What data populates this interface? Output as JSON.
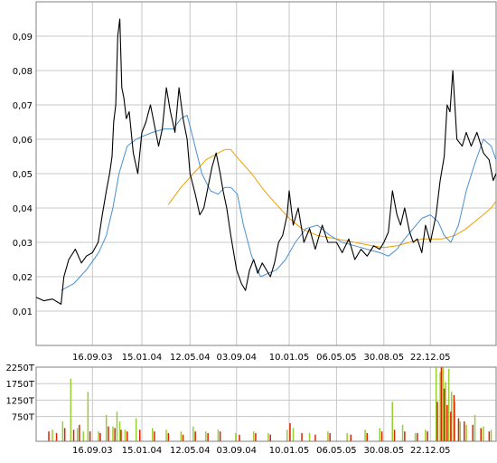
{
  "colors": {
    "price": "#000000",
    "ma_short": "#4a90d0",
    "ma_long": "#f0a000",
    "grid": "#c8c8c8",
    "axis": "#808080",
    "volume_green": "#9acd32",
    "volume_red": "#dd2200"
  },
  "chart_data": [
    {
      "type": "line",
      "title": "",
      "xlabel": "",
      "ylabel": "",
      "ylim": [
        0,
        0.1
      ],
      "xlim": [
        "2003-05-01",
        "2006-06-01"
      ],
      "grid": true,
      "yticks": [
        "0,01",
        "0,02",
        "0,03",
        "0,04",
        "0,05",
        "0,06",
        "0,07",
        "0,08",
        "0,09"
      ],
      "ytick_values": [
        0.01,
        0.02,
        0.03,
        0.04,
        0.05,
        0.06,
        0.07,
        0.08,
        0.09
      ],
      "xticks": [
        "16.09.03",
        "15.01.04",
        "12.05.04",
        "03.09.04",
        "10.01.05",
        "06.05.05",
        "30.08.05",
        "22.12.05"
      ],
      "xtick_dates": [
        "2003-09-16",
        "2004-01-15",
        "2004-05-12",
        "2004-09-03",
        "2005-01-10",
        "2005-05-06",
        "2005-08-30",
        "2005-12-22"
      ],
      "series": [
        {
          "role": "price",
          "x": [
            "2003-05-01",
            "2003-05-20",
            "2003-06-10",
            "2003-07-01",
            "2003-07-08",
            "2003-07-20",
            "2003-08-05",
            "2003-08-20",
            "2003-09-01",
            "2003-09-16",
            "2003-09-30",
            "2003-10-10",
            "2003-10-20",
            "2003-10-28",
            "2003-11-03",
            "2003-11-07",
            "2003-11-12",
            "2003-11-17",
            "2003-11-22",
            "2003-11-27",
            "2003-12-02",
            "2003-12-08",
            "2003-12-15",
            "2003-12-25",
            "2004-01-05",
            "2004-01-15",
            "2004-01-25",
            "2004-02-05",
            "2004-02-15",
            "2004-02-25",
            "2004-03-05",
            "2004-03-15",
            "2004-03-25",
            "2004-04-05",
            "2004-04-15",
            "2004-04-25",
            "2004-05-05",
            "2004-05-12",
            "2004-05-25",
            "2004-06-05",
            "2004-06-15",
            "2004-06-25",
            "2004-07-05",
            "2004-07-15",
            "2004-07-25",
            "2004-08-01",
            "2004-08-10",
            "2004-08-20",
            "2004-09-03",
            "2004-09-15",
            "2004-09-25",
            "2004-10-05",
            "2004-10-15",
            "2004-10-25",
            "2004-11-05",
            "2004-11-15",
            "2004-11-25",
            "2004-12-05",
            "2004-12-15",
            "2004-12-25",
            "2005-01-05",
            "2005-01-10",
            "2005-01-20",
            "2005-02-01",
            "2005-02-15",
            "2005-03-01",
            "2005-03-15",
            "2005-04-01",
            "2005-04-15",
            "2005-05-06",
            "2005-05-20",
            "2005-06-05",
            "2005-06-20",
            "2005-07-05",
            "2005-07-20",
            "2005-08-05",
            "2005-08-20",
            "2005-08-30",
            "2005-09-10",
            "2005-09-20",
            "2005-10-01",
            "2005-10-10",
            "2005-10-20",
            "2005-11-01",
            "2005-11-10",
            "2005-11-20",
            "2005-12-01",
            "2005-12-10",
            "2005-12-22",
            "2006-01-05",
            "2006-01-15",
            "2006-01-25",
            "2006-02-01",
            "2006-02-08",
            "2006-02-15",
            "2006-02-25",
            "2006-03-10",
            "2006-03-20",
            "2006-04-01",
            "2006-04-15",
            "2006-05-01",
            "2006-05-15",
            "2006-05-25",
            "2006-06-01"
          ],
          "values": [
            0.014,
            0.013,
            0.0135,
            0.012,
            0.02,
            0.025,
            0.028,
            0.024,
            0.026,
            0.027,
            0.03,
            0.038,
            0.045,
            0.05,
            0.055,
            0.065,
            0.07,
            0.09,
            0.095,
            0.075,
            0.072,
            0.066,
            0.068,
            0.056,
            0.05,
            0.062,
            0.065,
            0.07,
            0.064,
            0.058,
            0.063,
            0.075,
            0.068,
            0.062,
            0.075,
            0.066,
            0.06,
            0.05,
            0.044,
            0.038,
            0.04,
            0.046,
            0.052,
            0.056,
            0.05,
            0.045,
            0.04,
            0.032,
            0.022,
            0.018,
            0.016,
            0.022,
            0.025,
            0.021,
            0.024,
            0.022,
            0.02,
            0.024,
            0.03,
            0.032,
            0.038,
            0.045,
            0.035,
            0.04,
            0.03,
            0.034,
            0.028,
            0.035,
            0.03,
            0.03,
            0.027,
            0.031,
            0.025,
            0.028,
            0.026,
            0.029,
            0.028,
            0.03,
            0.033,
            0.045,
            0.038,
            0.035,
            0.04,
            0.033,
            0.03,
            0.031,
            0.027,
            0.035,
            0.03,
            0.038,
            0.048,
            0.055,
            0.07,
            0.068,
            0.08,
            0.06,
            0.058,
            0.062,
            0.058,
            0.062,
            0.056,
            0.054,
            0.048,
            0.05
          ]
        },
        {
          "role": "ma_short",
          "x": [
            "2003-07-01",
            "2003-08-01",
            "2003-09-01",
            "2003-10-01",
            "2003-10-20",
            "2003-11-05",
            "2003-11-20",
            "2003-12-10",
            "2004-01-01",
            "2004-01-20",
            "2004-02-10",
            "2004-03-10",
            "2004-04-01",
            "2004-04-20",
            "2004-05-05",
            "2004-05-20",
            "2004-06-10",
            "2004-07-01",
            "2004-07-20",
            "2004-08-05",
            "2004-08-20",
            "2004-09-05",
            "2004-09-20",
            "2004-10-10",
            "2004-11-01",
            "2004-11-20",
            "2004-12-10",
            "2005-01-01",
            "2005-01-25",
            "2005-02-20",
            "2005-03-20",
            "2005-04-20",
            "2005-05-20",
            "2005-06-20",
            "2005-07-20",
            "2005-08-20",
            "2005-09-10",
            "2005-10-01",
            "2005-10-20",
            "2005-11-10",
            "2005-12-01",
            "2005-12-22",
            "2006-01-10",
            "2006-01-25",
            "2006-02-10",
            "2006-03-01",
            "2006-03-20",
            "2006-04-10",
            "2006-05-01",
            "2006-05-20",
            "2006-06-01"
          ],
          "values": [
            0.016,
            0.018,
            0.022,
            0.027,
            0.032,
            0.04,
            0.05,
            0.058,
            0.06,
            0.061,
            0.062,
            0.063,
            0.063,
            0.066,
            0.067,
            0.06,
            0.05,
            0.045,
            0.044,
            0.046,
            0.046,
            0.044,
            0.035,
            0.026,
            0.02,
            0.021,
            0.022,
            0.025,
            0.03,
            0.034,
            0.035,
            0.032,
            0.03,
            0.029,
            0.028,
            0.027,
            0.026,
            0.028,
            0.031,
            0.034,
            0.037,
            0.038,
            0.036,
            0.032,
            0.03,
            0.035,
            0.045,
            0.053,
            0.06,
            0.058,
            0.054
          ]
        },
        {
          "role": "ma_long",
          "x": [
            "2004-03-20",
            "2004-04-20",
            "2004-05-20",
            "2004-06-20",
            "2004-07-20",
            "2004-08-05",
            "2004-08-20",
            "2004-09-10",
            "2004-10-10",
            "2004-11-10",
            "2004-12-10",
            "2005-01-10",
            "2005-02-10",
            "2005-03-20",
            "2005-05-06",
            "2005-06-20",
            "2005-08-01",
            "2005-08-30",
            "2005-10-01",
            "2005-11-01",
            "2005-12-01",
            "2005-12-22",
            "2006-01-20",
            "2006-02-20",
            "2006-03-20",
            "2006-04-20",
            "2006-05-20",
            "2006-06-01"
          ],
          "values": [
            0.041,
            0.046,
            0.05,
            0.054,
            0.056,
            0.057,
            0.057,
            0.054,
            0.05,
            0.045,
            0.041,
            0.037,
            0.034,
            0.032,
            0.031,
            0.03,
            0.029,
            0.0285,
            0.029,
            0.03,
            0.031,
            0.031,
            0.031,
            0.032,
            0.034,
            0.037,
            0.04,
            0.042
          ]
        }
      ]
    },
    {
      "type": "bar",
      "title": "",
      "xlabel": "",
      "ylabel": "",
      "ylim": [
        0,
        2250
      ],
      "yticks": [
        "2250T",
        "1750T",
        "1250T",
        "750T"
      ],
      "ytick_values": [
        2250,
        1750,
        1250,
        750
      ],
      "xticks": [
        "16.09.03",
        "15.01.04",
        "12.05.04",
        "03.09.04",
        "10.01.05",
        "06.05.05",
        "30.08.05",
        "22.12.05"
      ],
      "xtick_dates": [
        "2003-09-16",
        "2004-01-15",
        "2004-05-12",
        "2004-09-03",
        "2005-01-10",
        "2005-05-06",
        "2005-08-30",
        "2005-12-22"
      ],
      "series": [
        {
          "role": "volume_green",
          "x": [
            "2003-06-10",
            "2003-07-05",
            "2003-07-25",
            "2003-08-10",
            "2003-08-25",
            "2003-09-05",
            "2003-10-01",
            "2003-10-20",
            "2003-11-05",
            "2003-11-15",
            "2003-11-22",
            "2003-12-05",
            "2004-01-01",
            "2004-02-10",
            "2004-03-15",
            "2004-04-20",
            "2004-05-20",
            "2004-06-20",
            "2004-07-20",
            "2004-09-01",
            "2004-10-15",
            "2004-11-20",
            "2005-01-05",
            "2005-01-20",
            "2005-03-01",
            "2005-04-15",
            "2005-06-01",
            "2005-07-15",
            "2005-08-20",
            "2005-09-20",
            "2005-10-15",
            "2005-11-15",
            "2005-12-10",
            "2006-01-05",
            "2006-01-15",
            "2006-01-22",
            "2006-01-28",
            "2006-02-05",
            "2006-02-12",
            "2006-02-20",
            "2006-03-05",
            "2006-03-20",
            "2006-04-10",
            "2006-05-01",
            "2006-05-20"
          ],
          "values": [
            350,
            600,
            1900,
            400,
            300,
            1500,
            300,
            800,
            450,
            900,
            600,
            350,
            700,
            400,
            350,
            300,
            450,
            300,
            350,
            250,
            300,
            250,
            350,
            400,
            250,
            300,
            250,
            350,
            400,
            1200,
            500,
            250,
            350,
            2250,
            2100,
            2250,
            1800,
            2200,
            1500,
            1200,
            600,
            500,
            800,
            450,
            350
          ]
        },
        {
          "role": "volume_red",
          "x": [
            "2003-06-01",
            "2003-06-20",
            "2003-07-10",
            "2003-08-01",
            "2003-08-15",
            "2003-09-10",
            "2003-10-05",
            "2003-10-25",
            "2003-11-10",
            "2003-11-25",
            "2003-12-10",
            "2004-01-10",
            "2004-02-15",
            "2004-03-20",
            "2004-04-25",
            "2004-05-25",
            "2004-06-25",
            "2004-07-25",
            "2004-09-10",
            "2004-10-20",
            "2004-11-25",
            "2005-01-12",
            "2005-02-10",
            "2005-03-15",
            "2005-04-20",
            "2005-06-10",
            "2005-07-20",
            "2005-08-25",
            "2005-09-25",
            "2005-10-20",
            "2005-11-20",
            "2005-12-15",
            "2006-01-08",
            "2006-01-18",
            "2006-01-25",
            "2006-02-01",
            "2006-02-10",
            "2006-02-18",
            "2006-03-01",
            "2006-03-15",
            "2006-04-05",
            "2006-04-25",
            "2006-05-15"
          ],
          "values": [
            300,
            250,
            400,
            350,
            500,
            300,
            250,
            450,
            400,
            350,
            300,
            350,
            300,
            250,
            200,
            300,
            250,
            300,
            200,
            250,
            200,
            550,
            250,
            200,
            250,
            200,
            250,
            300,
            350,
            300,
            250,
            300,
            1200,
            2250,
            1600,
            1100,
            900,
            1400,
            700,
            600,
            500,
            400,
            300
          ]
        }
      ]
    }
  ]
}
